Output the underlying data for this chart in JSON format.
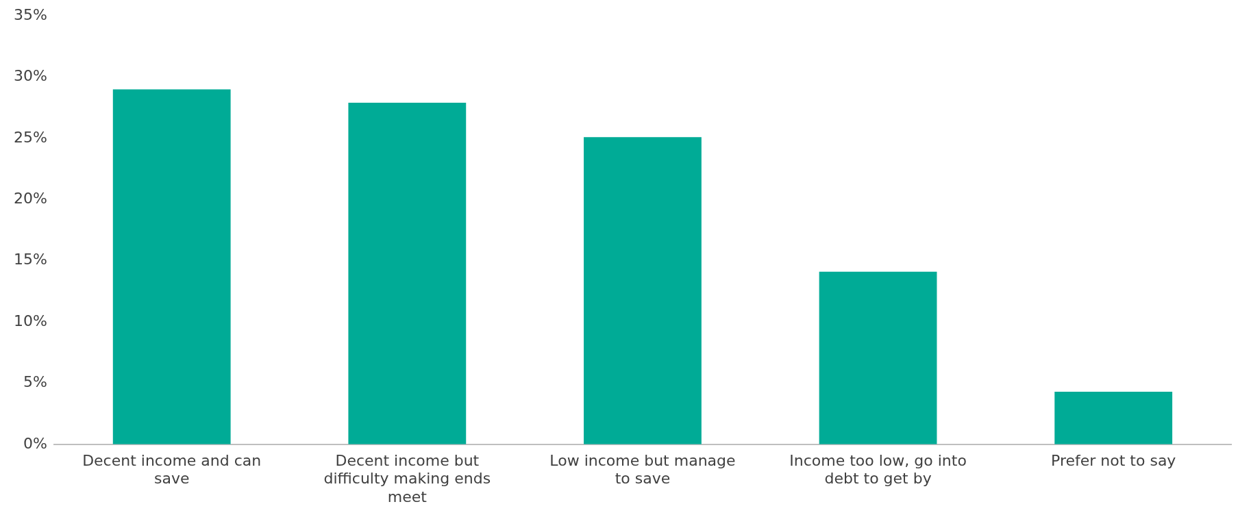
{
  "chart_data": {
    "type": "bar",
    "categories": [
      "Decent income and can save",
      "Decent income but difficulty making ends meet",
      "Low income but manage to save",
      "Income too low, go into debt to get by",
      "Prefer not to say"
    ],
    "values": [
      29,
      27.9,
      25.1,
      14.1,
      4.3
    ],
    "color": "#00ab96",
    "ylim": [
      0,
      35
    ],
    "yticks": [
      {
        "value": 0,
        "label": "0%"
      },
      {
        "value": 5,
        "label": "5%"
      },
      {
        "value": 10,
        "label": "10%"
      },
      {
        "value": 15,
        "label": "15%"
      },
      {
        "value": 20,
        "label": "20%"
      },
      {
        "value": 25,
        "label": "25%"
      },
      {
        "value": 30,
        "label": "30%"
      },
      {
        "value": 35,
        "label": "35%"
      }
    ],
    "grid": false,
    "legend": false
  }
}
